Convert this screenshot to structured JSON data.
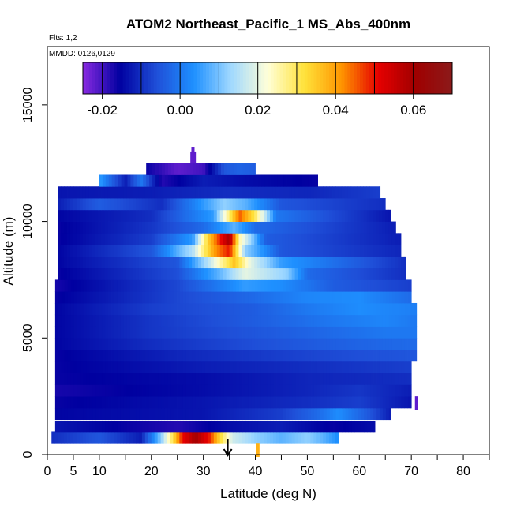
{
  "chart_data": {
    "type": "heatmap",
    "title": "ATOM2 Northeast_Pacific_1 MS_Abs_400nm",
    "flights_note": "Flts: 1,2",
    "date_note": "MMDD: 0126,0129",
    "xlabel": "Latitude (deg N)",
    "ylabel": "Altitude (m)",
    "xlim": [
      0,
      85
    ],
    "ylim": [
      0,
      17500
    ],
    "x_ticks": [
      0,
      5,
      10,
      20,
      30,
      40,
      50,
      60,
      70,
      80
    ],
    "x_minor_ticks": [
      15,
      25,
      35,
      45,
      55,
      65,
      75,
      85
    ],
    "y_ticks": [
      0,
      5000,
      10000,
      15000
    ],
    "colorbar": {
      "min": -0.025,
      "max": 0.07,
      "ticks": [
        -0.02,
        0.0,
        0.02,
        0.04,
        0.06
      ],
      "tick_labels": [
        "-0.02",
        "0.00",
        "0.02",
        "0.04",
        "0.06"
      ],
      "boundaries": [
        -0.025,
        -0.02,
        -0.01,
        0.0,
        0.01,
        0.02,
        0.03,
        0.04,
        0.05,
        0.06,
        0.07
      ],
      "colors": [
        "#8a2be2",
        "#0000a0",
        "#1f4fd8",
        "#1e90ff",
        "#9fd8ff",
        "#ffffd8",
        "#ffe23a",
        "#ff9500",
        "#e60000",
        "#a00000",
        "#8b1a1a"
      ]
    },
    "arrow_marker": {
      "latitude": 34.7,
      "direction": "down"
    },
    "highlights": [
      {
        "lat": 40.5,
        "alt": 200,
        "value": 0.038
      },
      {
        "lat": 71,
        "alt": 2200,
        "value": -0.022
      },
      {
        "lat": 28,
        "alt": 12900,
        "value": -0.022
      }
    ],
    "layers": [
      {
        "alt": 750,
        "lat_min": 0.8,
        "lat_max": 56,
        "points": [
          [
            0.8,
            -0.01
          ],
          [
            10,
            -0.005
          ],
          [
            18,
            -0.012
          ],
          [
            22,
            0.012
          ],
          [
            24,
            0.03
          ],
          [
            26,
            0.05
          ],
          [
            28.5,
            0.06
          ],
          [
            31,
            0.05
          ],
          [
            33,
            0.035
          ],
          [
            35.5,
            0.018
          ],
          [
            40,
            0.012
          ],
          [
            45,
            0.008
          ],
          [
            50,
            0.012
          ],
          [
            53,
            0.008
          ],
          [
            56,
            0.003
          ]
        ]
      },
      {
        "alt": 1200,
        "lat_min": 1.5,
        "lat_max": 63,
        "points": [
          [
            1.5,
            -0.013
          ],
          [
            15,
            -0.016
          ],
          [
            25,
            -0.018
          ],
          [
            35,
            -0.014
          ],
          [
            45,
            -0.012
          ],
          [
            55,
            -0.016
          ],
          [
            63,
            -0.014
          ]
        ]
      },
      {
        "alt": 1750,
        "lat_min": 1.5,
        "lat_max": 66,
        "points": [
          [
            1.5,
            -0.015
          ],
          [
            30,
            -0.013
          ],
          [
            45,
            -0.008
          ],
          [
            52,
            -0.002
          ],
          [
            56,
            0.003
          ],
          [
            62,
            -0.005
          ],
          [
            66,
            -0.012
          ]
        ]
      },
      {
        "alt": 2250,
        "lat_min": 1.5,
        "lat_max": 70,
        "points": [
          [
            1.5,
            -0.016
          ],
          [
            30,
            -0.013
          ],
          [
            50,
            -0.01
          ],
          [
            60,
            -0.008
          ],
          [
            70,
            -0.013
          ]
        ]
      },
      {
        "alt": 2750,
        "lat_min": 1.5,
        "lat_max": 70,
        "points": [
          [
            1.5,
            -0.017
          ],
          [
            30,
            -0.014
          ],
          [
            50,
            -0.011
          ],
          [
            60,
            -0.009
          ],
          [
            70,
            -0.012
          ]
        ]
      },
      {
        "alt": 3250,
        "lat_min": 1.5,
        "lat_max": 70,
        "points": [
          [
            1.5,
            -0.016
          ],
          [
            30,
            -0.014
          ],
          [
            50,
            -0.011
          ],
          [
            70,
            -0.01
          ]
        ]
      },
      {
        "alt": 3750,
        "lat_min": 1.5,
        "lat_max": 70,
        "points": [
          [
            1.5,
            -0.016
          ],
          [
            30,
            -0.012
          ],
          [
            50,
            -0.01
          ],
          [
            70,
            -0.008
          ]
        ]
      },
      {
        "alt": 4250,
        "lat_min": 1.5,
        "lat_max": 71,
        "points": [
          [
            1.5,
            -0.016
          ],
          [
            25,
            -0.011
          ],
          [
            45,
            -0.008
          ],
          [
            60,
            -0.006
          ],
          [
            71,
            -0.005
          ]
        ]
      },
      {
        "alt": 4750,
        "lat_min": 1.5,
        "lat_max": 71,
        "points": [
          [
            1.5,
            -0.015
          ],
          [
            20,
            -0.01
          ],
          [
            40,
            -0.006
          ],
          [
            60,
            -0.003
          ],
          [
            71,
            -0.002
          ]
        ]
      },
      {
        "alt": 5250,
        "lat_min": 1.5,
        "lat_max": 71,
        "points": [
          [
            1.5,
            -0.015
          ],
          [
            20,
            -0.009
          ],
          [
            40,
            -0.005
          ],
          [
            55,
            -0.002
          ],
          [
            65,
            0.0
          ],
          [
            71,
            0.0
          ]
        ]
      },
      {
        "alt": 5750,
        "lat_min": 1.5,
        "lat_max": 71,
        "points": [
          [
            1.5,
            -0.015
          ],
          [
            20,
            -0.009
          ],
          [
            40,
            -0.004
          ],
          [
            55,
            0.0
          ],
          [
            65,
            0.002
          ],
          [
            71,
            0.0
          ]
        ]
      },
      {
        "alt": 6250,
        "lat_min": 1.5,
        "lat_max": 71,
        "points": [
          [
            1.5,
            -0.015
          ],
          [
            20,
            -0.008
          ],
          [
            40,
            -0.004
          ],
          [
            50,
            0.0
          ],
          [
            60,
            0.003
          ],
          [
            71,
            0.001
          ]
        ]
      },
      {
        "alt": 6750,
        "lat_min": 1.5,
        "lat_max": 70,
        "points": [
          [
            1.5,
            -0.016
          ],
          [
            25,
            -0.007
          ],
          [
            40,
            -0.002
          ],
          [
            50,
            0.002
          ],
          [
            60,
            0.003
          ],
          [
            70,
            -0.002
          ]
        ]
      },
      {
        "alt": 7250,
        "lat_min": 1.5,
        "lat_max": 70,
        "points": [
          [
            1.5,
            -0.017
          ],
          [
            25,
            -0.007
          ],
          [
            38,
            0.005
          ],
          [
            45,
            0.003
          ],
          [
            55,
            -0.004
          ],
          [
            70,
            -0.008
          ]
        ]
      },
      {
        "alt": 7750,
        "lat_min": 2,
        "lat_max": 69,
        "points": [
          [
            2,
            -0.016
          ],
          [
            25,
            -0.006
          ],
          [
            33,
            0.008
          ],
          [
            38,
            0.02
          ],
          [
            46,
            0.012
          ],
          [
            50,
            -0.002
          ],
          [
            69,
            -0.01
          ]
        ]
      },
      {
        "alt": 8250,
        "lat_min": 2,
        "lat_max": 69,
        "points": [
          [
            2,
            -0.015
          ],
          [
            25,
            -0.005
          ],
          [
            30,
            0.012
          ],
          [
            36,
            0.036
          ],
          [
            39,
            0.02
          ],
          [
            45,
            0.005
          ],
          [
            69,
            -0.01
          ]
        ]
      },
      {
        "alt": 8750,
        "lat_min": 2,
        "lat_max": 68,
        "points": [
          [
            2,
            -0.015
          ],
          [
            20,
            -0.005
          ],
          [
            28,
            0.015
          ],
          [
            32,
            0.04
          ],
          [
            35,
            0.05
          ],
          [
            38,
            0.012
          ],
          [
            45,
            -0.005
          ],
          [
            68,
            -0.011
          ]
        ]
      },
      {
        "alt": 9250,
        "lat_min": 2,
        "lat_max": 68,
        "points": [
          [
            2,
            -0.016
          ],
          [
            20,
            -0.008
          ],
          [
            28,
            0.005
          ],
          [
            31,
            0.035
          ],
          [
            35,
            0.06
          ],
          [
            37,
            0.025
          ],
          [
            42,
            -0.004
          ],
          [
            68,
            -0.012
          ]
        ]
      },
      {
        "alt": 9750,
        "lat_min": 2,
        "lat_max": 67,
        "points": [
          [
            2,
            -0.016
          ],
          [
            20,
            -0.009
          ],
          [
            30,
            -0.002
          ],
          [
            36,
            0.008
          ],
          [
            40,
            -0.002
          ],
          [
            67,
            -0.012
          ]
        ]
      },
      {
        "alt": 10250,
        "lat_min": 2,
        "lat_max": 66,
        "points": [
          [
            2,
            -0.015
          ],
          [
            20,
            -0.01
          ],
          [
            32,
            0.005
          ],
          [
            37,
            0.045
          ],
          [
            40,
            0.03
          ],
          [
            44,
            0.0
          ],
          [
            66,
            -0.013
          ]
        ]
      },
      {
        "alt": 10750,
        "lat_min": 2,
        "lat_max": 65,
        "points": [
          [
            2,
            -0.012
          ],
          [
            10,
            -0.004
          ],
          [
            22,
            -0.01
          ],
          [
            34,
            0.012
          ],
          [
            38,
            0.008
          ],
          [
            45,
            -0.005
          ],
          [
            65,
            -0.01
          ]
        ]
      },
      {
        "alt": 11250,
        "lat_min": 2,
        "lat_max": 64,
        "points": [
          [
            2,
            -0.013
          ],
          [
            20,
            -0.012
          ],
          [
            35,
            -0.01
          ],
          [
            50,
            -0.011
          ],
          [
            64,
            -0.008
          ]
        ]
      },
      {
        "alt": 11750,
        "lat_min": 10,
        "lat_max": 52,
        "points": [
          [
            10,
            0.005
          ],
          [
            15,
            -0.012
          ],
          [
            18,
            0.0
          ],
          [
            22,
            -0.018
          ],
          [
            30,
            -0.012
          ],
          [
            38,
            -0.014
          ],
          [
            52,
            -0.016
          ]
        ]
      },
      {
        "alt": 12250,
        "lat_min": 19,
        "lat_max": 40,
        "points": [
          [
            19,
            -0.016
          ],
          [
            25,
            -0.022
          ],
          [
            30,
            -0.02
          ],
          [
            34,
            -0.005
          ],
          [
            37,
            -0.003
          ],
          [
            40,
            -0.004
          ]
        ]
      },
      {
        "alt": 12750,
        "lat_min": 27.5,
        "lat_max": 28.5,
        "points": [
          [
            27.5,
            -0.022
          ],
          [
            28.5,
            -0.022
          ]
        ]
      }
    ]
  }
}
